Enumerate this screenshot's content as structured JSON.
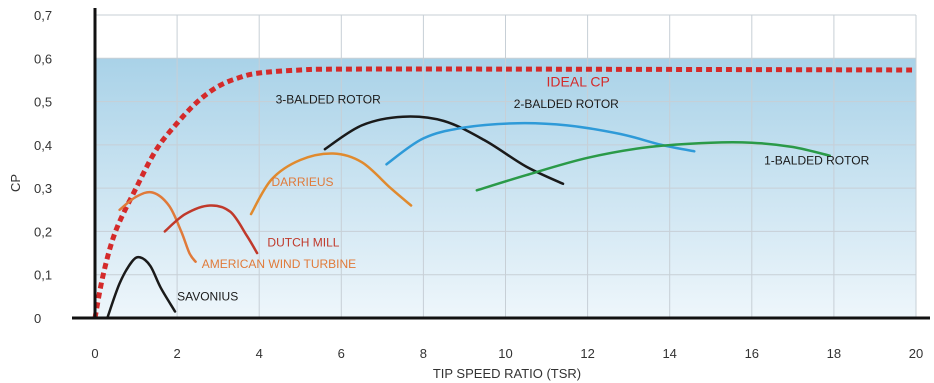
{
  "chart_data": {
    "type": "line",
    "title": "",
    "xlabel": "TIP SPEED RATIO (TSR)",
    "ylabel": "CP",
    "xlim": [
      0,
      20
    ],
    "ylim": [
      0,
      0.7
    ],
    "x_ticks": [
      "0",
      "2",
      "4",
      "6",
      "8",
      "10",
      "12",
      "14",
      "16",
      "18",
      "20"
    ],
    "y_ticks": [
      "0",
      "0,1",
      "0,2",
      "0,3",
      "0,4",
      "0,5",
      "0,6",
      "0,7"
    ],
    "grid": true,
    "shaded_band": {
      "ymin": 0,
      "ymax": 0.6
    },
    "series": [
      {
        "name": "IDEAL CP",
        "color": "#d42a2a",
        "dashed": true,
        "points": [
          [
            0,
            0
          ],
          [
            0.2,
            0.1
          ],
          [
            0.5,
            0.2
          ],
          [
            1,
            0.3
          ],
          [
            1.5,
            0.39
          ],
          [
            2,
            0.45
          ],
          [
            2.5,
            0.5
          ],
          [
            3,
            0.535
          ],
          [
            3.5,
            0.555
          ],
          [
            4,
            0.566
          ],
          [
            5,
            0.573
          ],
          [
            6,
            0.575
          ],
          [
            10,
            0.575
          ],
          [
            15,
            0.574
          ],
          [
            20,
            0.573
          ]
        ]
      },
      {
        "name": "SAVONIUS",
        "color": "#1a1a1a",
        "dashed": false,
        "points": [
          [
            0.3,
            0
          ],
          [
            0.6,
            0.08
          ],
          [
            0.9,
            0.13
          ],
          [
            1.1,
            0.14
          ],
          [
            1.35,
            0.12
          ],
          [
            1.6,
            0.07
          ],
          [
            1.95,
            0.015
          ]
        ]
      },
      {
        "name": "AMERICAN WIND TURBINE",
        "color": "#e07a3a",
        "dashed": false,
        "points": [
          [
            0.6,
            0.25
          ],
          [
            1,
            0.28
          ],
          [
            1.4,
            0.29
          ],
          [
            1.8,
            0.26
          ],
          [
            2.1,
            0.2
          ],
          [
            2.3,
            0.15
          ],
          [
            2.45,
            0.13
          ]
        ]
      },
      {
        "name": "DUTCH MILL",
        "color": "#c0392b",
        "dashed": false,
        "points": [
          [
            1.7,
            0.2
          ],
          [
            2.2,
            0.24
          ],
          [
            2.8,
            0.26
          ],
          [
            3.3,
            0.245
          ],
          [
            3.7,
            0.19
          ],
          [
            3.95,
            0.15
          ]
        ]
      },
      {
        "name": "DARRIEUS",
        "color": "#e08a2e",
        "dashed": false,
        "points": [
          [
            3.8,
            0.24
          ],
          [
            4.3,
            0.32
          ],
          [
            5,
            0.365
          ],
          [
            5.8,
            0.38
          ],
          [
            6.5,
            0.36
          ],
          [
            7.2,
            0.3
          ],
          [
            7.7,
            0.26
          ]
        ]
      },
      {
        "name": "3-BALDED ROTOR",
        "color": "#1a1a1a",
        "dashed": false,
        "points": [
          [
            5.6,
            0.39
          ],
          [
            6.5,
            0.445
          ],
          [
            7.5,
            0.465
          ],
          [
            8.5,
            0.455
          ],
          [
            9.5,
            0.41
          ],
          [
            10.5,
            0.35
          ],
          [
            11.4,
            0.31
          ]
        ]
      },
      {
        "name": "2-BALDED ROTOR",
        "color": "#2e9ad8",
        "dashed": false,
        "points": [
          [
            7.1,
            0.355
          ],
          [
            8,
            0.415
          ],
          [
            9,
            0.44
          ],
          [
            10.3,
            0.45
          ],
          [
            11.5,
            0.445
          ],
          [
            12.8,
            0.425
          ],
          [
            13.8,
            0.4
          ],
          [
            14.6,
            0.385
          ]
        ]
      },
      {
        "name": "1-BALDED ROTOR",
        "color": "#2a9a48",
        "dashed": false,
        "points": [
          [
            9.3,
            0.295
          ],
          [
            10.5,
            0.33
          ],
          [
            12,
            0.37
          ],
          [
            13.5,
            0.395
          ],
          [
            15,
            0.405
          ],
          [
            16,
            0.405
          ],
          [
            17,
            0.395
          ],
          [
            17.9,
            0.375
          ]
        ]
      }
    ],
    "annotations": [
      {
        "text": "IDEAL CP",
        "x": 11,
        "y": 0.535,
        "color": "#d42a2a"
      },
      {
        "text": "3-BALDED ROTOR",
        "x": 4.4,
        "y": 0.495,
        "color": "#1a1a1a"
      },
      {
        "text": "2-BALDED ROTOR",
        "x": 10.2,
        "y": 0.485,
        "color": "#1a1a1a"
      },
      {
        "text": "1-BALDED ROTOR",
        "x": 16.3,
        "y": 0.355,
        "color": "#1a1a1a"
      },
      {
        "text": "DARRIEUS",
        "x": 4.3,
        "y": 0.305,
        "color": "#e07a3a"
      },
      {
        "text": "DUTCH MILL",
        "x": 4.2,
        "y": 0.165,
        "color": "#c0392b"
      },
      {
        "text": "AMERICAN WIND TURBINE",
        "x": 2.6,
        "y": 0.115,
        "color": "#e07a3a"
      },
      {
        "text": "SAVONIUS",
        "x": 2.0,
        "y": 0.04,
        "color": "#1a1a1a"
      }
    ]
  }
}
